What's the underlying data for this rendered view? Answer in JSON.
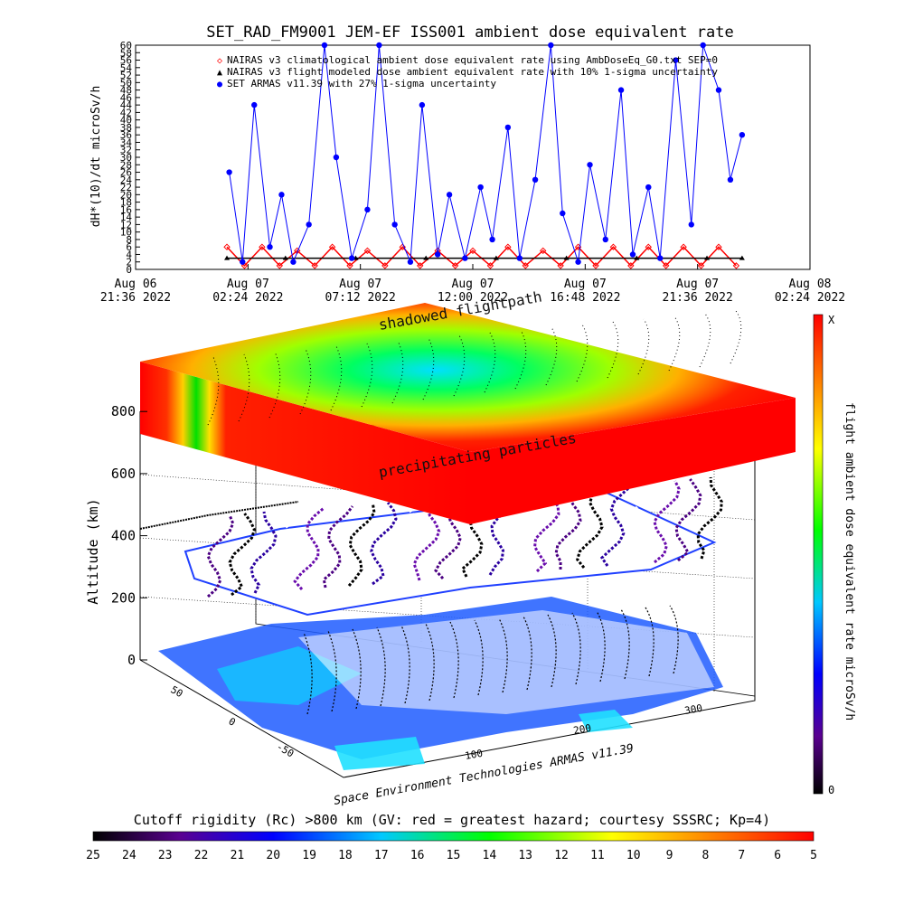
{
  "top_chart": {
    "title": "SET_RAD_FM9001  JEM-EF ISS001 ambient dose equivalent rate",
    "ylabel": "dH*(10)/dt microSv/h",
    "y_ticks": [
      "0",
      "2",
      "4",
      "6",
      "8",
      "10",
      "12",
      "14",
      "16",
      "18",
      "20",
      "22",
      "24",
      "26",
      "28",
      "30",
      "32",
      "34",
      "36",
      "38",
      "40",
      "42",
      "44",
      "46",
      "48",
      "50",
      "52",
      "54",
      "56",
      "58",
      "60"
    ],
    "x_ticks": [
      {
        "line1": "Aug 06",
        "line2": "21:36 2022"
      },
      {
        "line1": "Aug 07",
        "line2": "02:24 2022"
      },
      {
        "line1": "Aug 07",
        "line2": "07:12 2022"
      },
      {
        "line1": "Aug 07",
        "line2": "12:00 2022"
      },
      {
        "line1": "Aug 07",
        "line2": "16:48 2022"
      },
      {
        "line1": "Aug 07",
        "line2": "21:36 2022"
      },
      {
        "line1": "Aug 08",
        "line2": "02:24 2022"
      }
    ],
    "legend": [
      {
        "symbol": "◇",
        "color": "#ff0000",
        "text": "NAIRAS v3 climatological ambient dose equivalent rate using AmbDoseEq_G0.txt SEP=0"
      },
      {
        "symbol": "▲",
        "color": "#000000",
        "text": "NAIRAS v3 flight modeled dose ambient equivalent rate with 10% 1-sigma uncertainty"
      },
      {
        "symbol": "●",
        "color": "#0000ff",
        "text": "SET ARMAS v11.39 with 27% 1-sigma uncertainty"
      }
    ]
  },
  "chart_data": {
    "type": "line",
    "title": "SET_RAD_FM9001  JEM-EF ISS001 ambient dose equivalent rate",
    "xlabel": "",
    "ylabel": "dH*(10)/dt microSv/h",
    "ylim": [
      0,
      60
    ],
    "xlim": [
      "2022-08-06 21:36",
      "2022-08-08 02:24"
    ],
    "series": [
      {
        "name": "NAIRAS v3 climatological ambient dose equivalent rate using AmbDoseEq_G0.txt SEP=0",
        "color": "#ff0000",
        "marker": "diamond",
        "x": [
          "2022-08-07 01:30",
          "2022-08-07 02:15",
          "2022-08-07 03:00",
          "2022-08-07 03:45",
          "2022-08-07 04:30",
          "2022-08-07 05:15",
          "2022-08-07 06:00",
          "2022-08-07 06:45",
          "2022-08-07 07:30",
          "2022-08-07 08:15",
          "2022-08-07 09:00",
          "2022-08-07 09:45",
          "2022-08-07 10:30",
          "2022-08-07 11:15",
          "2022-08-07 12:00",
          "2022-08-07 12:45",
          "2022-08-07 13:30",
          "2022-08-07 14:15",
          "2022-08-07 15:00",
          "2022-08-07 15:45",
          "2022-08-07 16:30",
          "2022-08-07 17:15",
          "2022-08-07 18:00",
          "2022-08-07 18:45",
          "2022-08-07 19:30",
          "2022-08-07 20:15",
          "2022-08-07 21:00",
          "2022-08-07 21:45",
          "2022-08-07 22:30",
          "2022-08-07 23:15"
        ],
        "values": [
          6,
          1,
          6,
          1,
          5,
          1,
          6,
          1,
          5,
          1,
          6,
          1,
          5,
          1,
          5,
          1,
          6,
          1,
          5,
          1,
          6,
          1,
          6,
          1,
          6,
          1,
          6,
          1,
          6,
          1
        ]
      },
      {
        "name": "NAIRAS v3 flight modeled dose ambient equivalent rate with 10% 1-sigma uncertainty",
        "color": "#000000",
        "marker": "triangle",
        "x": [
          "2022-08-07 01:30",
          "2022-08-07 04:00",
          "2022-08-07 07:00",
          "2022-08-07 10:00",
          "2022-08-07 13:00",
          "2022-08-07 16:00",
          "2022-08-07 19:00",
          "2022-08-07 22:00",
          "2022-08-07 23:30"
        ],
        "values": [
          3,
          3,
          3,
          3,
          3,
          3,
          3,
          3,
          3
        ]
      },
      {
        "name": "SET ARMAS v11.39 with 27% 1-sigma uncertainty",
        "color": "#0000ff",
        "marker": "circle",
        "x": [
          "2022-08-07 01:36",
          "2022-08-07 02:10",
          "2022-08-07 02:40",
          "2022-08-07 03:20",
          "2022-08-07 03:50",
          "2022-08-07 04:20",
          "2022-08-07 05:00",
          "2022-08-07 05:40",
          "2022-08-07 06:10",
          "2022-08-07 06:50",
          "2022-08-07 07:30",
          "2022-08-07 08:00",
          "2022-08-07 08:40",
          "2022-08-07 09:20",
          "2022-08-07 09:50",
          "2022-08-07 10:30",
          "2022-08-07 11:00",
          "2022-08-07 11:40",
          "2022-08-07 12:20",
          "2022-08-07 12:50",
          "2022-08-07 13:30",
          "2022-08-07 14:00",
          "2022-08-07 14:40",
          "2022-08-07 15:20",
          "2022-08-07 15:50",
          "2022-08-07 16:30",
          "2022-08-07 17:00",
          "2022-08-07 17:40",
          "2022-08-07 18:20",
          "2022-08-07 18:50",
          "2022-08-07 19:30",
          "2022-08-07 20:00",
          "2022-08-07 20:40",
          "2022-08-07 21:20",
          "2022-08-07 21:50",
          "2022-08-07 22:30",
          "2022-08-07 23:00",
          "2022-08-07 23:30"
        ],
        "values": [
          26,
          2,
          44,
          6,
          20,
          2,
          12,
          60,
          30,
          3,
          16,
          60,
          12,
          2,
          44,
          4,
          20,
          3,
          22,
          8,
          38,
          3,
          24,
          60,
          15,
          2,
          28,
          8,
          48,
          4,
          22,
          3,
          56,
          12,
          62,
          48,
          24,
          36
        ]
      }
    ]
  },
  "bottom_chart": {
    "zlabel": "Altitude (km)",
    "z_ticks": [
      "0",
      "200",
      "400",
      "600",
      "800"
    ],
    "lat_ticks": [
      "50",
      "0",
      "-50"
    ],
    "lon_ticks": [
      "100",
      "200",
      "300"
    ],
    "label_upper": "shadowed flightpath",
    "label_lower": "precipitating particles",
    "credit": "Space Environment Technologies ARMAS v11.39",
    "colorbar_label": "flight ambient dose equivalent rate microSv/h",
    "colorbar_top": "X",
    "colorbar_bottom": "0",
    "colors": {
      "high": "#ff0000",
      "mid": "#00ff00",
      "low": "#000000"
    }
  },
  "rc_bar": {
    "title": "Cutoff rigidity (Rc) >800 km (GV: red = greatest hazard; courtesy SSSRC; Kp=4)",
    "ticks": [
      "25",
      "24",
      "23",
      "22",
      "21",
      "20",
      "19",
      "18",
      "17",
      "16",
      "15",
      "14",
      "13",
      "12",
      "11",
      "10",
      "9",
      "8",
      "7",
      "6",
      "5"
    ]
  }
}
